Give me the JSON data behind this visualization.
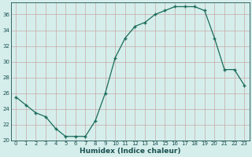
{
  "x": [
    0,
    1,
    2,
    3,
    4,
    5,
    6,
    7,
    8,
    9,
    10,
    11,
    12,
    13,
    14,
    15,
    16,
    17,
    18,
    19,
    20,
    21,
    22,
    23
  ],
  "y": [
    25.5,
    24.5,
    23.5,
    23.0,
    21.5,
    20.5,
    20.5,
    20.5,
    22.5,
    26.0,
    30.5,
    33.0,
    34.5,
    35.0,
    36.0,
    36.5,
    37.0,
    37.0,
    37.0,
    36.5,
    33.0,
    29.0,
    29.0,
    27.0
  ],
  "xlabel": "Humidex (Indice chaleur)",
  "ylim": [
    20,
    37.5
  ],
  "xlim": [
    -0.5,
    23.5
  ],
  "yticks": [
    20,
    22,
    24,
    26,
    28,
    30,
    32,
    34,
    36
  ],
  "xticks": [
    0,
    1,
    2,
    3,
    4,
    5,
    6,
    7,
    8,
    9,
    10,
    11,
    12,
    13,
    14,
    15,
    16,
    17,
    18,
    19,
    20,
    21,
    22,
    23
  ],
  "line_color": "#1a6b5a",
  "marker": "+",
  "bg_color": "#d5eeeb",
  "grid_color_v": "#c8a8a8",
  "grid_color_h": "#c8a8a8",
  "text_color": "#1a5050",
  "tick_fontsize": 5.0,
  "xlabel_fontsize": 6.5
}
